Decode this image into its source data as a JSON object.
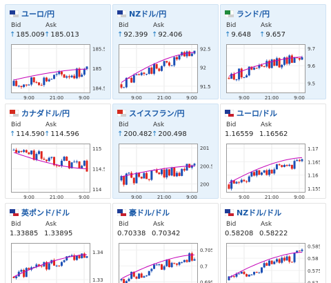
{
  "labels": {
    "bid": "Bid",
    "ask": "Ask"
  },
  "colors": {
    "up": "#1a4fb5",
    "down": "#e0261e",
    "ma": "#c400b8"
  },
  "cards": [
    {
      "name": "ユーロ/円",
      "bid": "185.009",
      "ask": "185.013",
      "arrow": true,
      "highlight": true,
      "flag": "eu-jp-flag",
      "y_ticks": [
        "185.5",
        "185",
        "184.5"
      ],
      "x_ticks": [
        "9:00",
        "21:00",
        "9:00"
      ],
      "chart_data": {
        "type": "candlestick",
        "ylim": [
          184.4,
          185.6
        ],
        "open": 184.55,
        "close": 184.95,
        "ma_start": 184.7,
        "ma_end": 184.98
      }
    },
    {
      "name": "NZドル/円",
      "bid": "92.399",
      "ask": "92.406",
      "arrow": true,
      "highlight": true,
      "flag": "nz-jp-flag",
      "y_ticks": [
        "92.5",
        "92",
        "91.5"
      ],
      "x_ticks": [
        "9:00",
        "21:00",
        "9:00"
      ],
      "chart_data": {
        "type": "candlestick",
        "ylim": [
          91.35,
          92.6
        ],
        "open": 91.55,
        "close": 92.42,
        "ma_start": 91.6,
        "ma_end": 92.4
      }
    },
    {
      "name": "ランド/円",
      "bid": "9.648",
      "ask": "9.657",
      "arrow": true,
      "highlight": true,
      "flag": "za-jp-flag",
      "y_ticks": [
        "9.7",
        "9.6",
        "9.5"
      ],
      "x_ticks": [
        "9:00",
        "21:00",
        "9:00"
      ],
      "chart_data": {
        "type": "candlestick",
        "ylim": [
          9.45,
          9.72
        ],
        "open": 9.53,
        "close": 9.66,
        "ma_start": 9.54,
        "ma_end": 9.65
      }
    },
    {
      "name": "カナダドル/円",
      "bid": "114.590",
      "ask": "114.596",
      "arrow": true,
      "highlight": false,
      "flag": "ca-jp-flag",
      "y_ticks": [
        "115",
        "114.5",
        "114"
      ],
      "x_ticks": [
        "9:00",
        "21:00",
        "9:00"
      ],
      "chart_data": {
        "type": "candlestick",
        "ylim": [
          113.95,
          115.1
        ],
        "open": 114.95,
        "close": 114.55,
        "ma_start": 114.9,
        "ma_end": 114.5
      }
    },
    {
      "name": "スイスフラン/円",
      "bid": "200.482",
      "ask": "200.498",
      "arrow": true,
      "highlight": true,
      "flag": "ch-jp-flag",
      "y_ticks": [
        "201",
        "200.5",
        "200"
      ],
      "x_ticks": [
        "9:00",
        "21:00",
        "9:00"
      ],
      "chart_data": {
        "type": "candlestick",
        "ylim": [
          199.8,
          201.1
        ],
        "open": 200.1,
        "close": 200.45,
        "ma_start": 200.2,
        "ma_end": 200.5
      }
    },
    {
      "name": "ユーロ/ドル",
      "bid": "1.16559",
      "ask": "1.16562",
      "arrow": false,
      "highlight": false,
      "flag": "eu-us-flag",
      "y_ticks": [
        "1.17",
        "1.165",
        "1.16",
        "1.155"
      ],
      "x_ticks": [
        "9:00",
        "21:00",
        "9:00"
      ],
      "chart_data": {
        "type": "candlestick",
        "ylim": [
          1.154,
          1.1715
        ],
        "open": 1.1565,
        "close": 1.1655,
        "ma_start": 1.157,
        "ma_end": 1.1665
      }
    },
    {
      "name": "英ポンド/ドル",
      "bid": "1.33885",
      "ask": "1.33895",
      "arrow": false,
      "highlight": false,
      "flag": "gb-us-flag",
      "y_ticks": [
        "1.34",
        "1.33"
      ],
      "x_ticks": [],
      "chart_data": {
        "type": "candlestick",
        "ylim": [
          1.328,
          1.343
        ],
        "open": 1.331,
        "close": 1.339,
        "ma_start": 1.331,
        "ma_end": 1.339
      }
    },
    {
      "name": "豪ドル/ドル",
      "bid": "0.70338",
      "ask": "0.70342",
      "arrow": false,
      "highlight": false,
      "flag": "au-us-flag",
      "y_ticks": [
        "0.705",
        "0.7",
        "0.695"
      ],
      "x_ticks": [],
      "chart_data": {
        "type": "candlestick",
        "ylim": [
          0.694,
          0.707
        ],
        "open": 0.6955,
        "close": 0.7034,
        "ma_start": 0.696,
        "ma_end": 0.7035
      }
    },
    {
      "name": "NZドル/ドル",
      "bid": "0.58208",
      "ask": "0.58222",
      "arrow": false,
      "highlight": false,
      "flag": "nz-us-flag",
      "y_ticks": [
        "0.585",
        "0.58",
        "0.575",
        "0.57"
      ],
      "x_ticks": [],
      "chart_data": {
        "type": "candlestick",
        "ylim": [
          0.569,
          0.586
        ],
        "open": 0.571,
        "close": 0.582,
        "ma_start": 0.572,
        "ma_end": 0.5825
      }
    }
  ]
}
